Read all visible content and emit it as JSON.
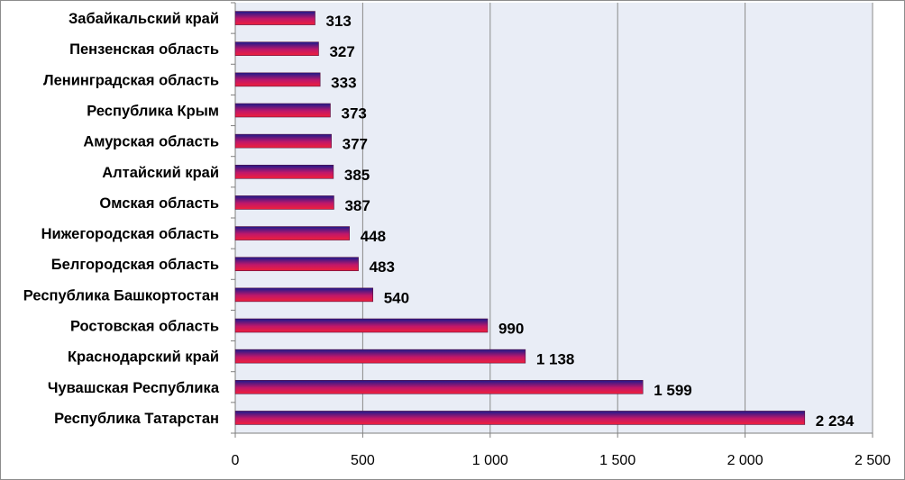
{
  "chart_data": {
    "type": "bar",
    "orientation": "horizontal",
    "categories": [
      "Забайкальский край",
      "Пензенская область",
      "Ленинградская область",
      "Республика Крым",
      "Амурская область",
      "Алтайский край",
      "Омская область",
      "Нижегородская область",
      "Белгородская область",
      "Республика Башкортостан",
      "Ростовская область",
      "Краснодарский край",
      "Чувашская Республика",
      "Республика Татарстан"
    ],
    "values": [
      313,
      327,
      333,
      373,
      377,
      385,
      387,
      448,
      483,
      540,
      990,
      1138,
      1599,
      2234
    ],
    "value_labels": [
      "313",
      "327",
      "333",
      "373",
      "377",
      "385",
      "387",
      "448",
      "483",
      "540",
      "990",
      "1 138",
      "1 599",
      "2 234"
    ],
    "xlim": [
      0,
      2500
    ],
    "xticks": [
      0,
      500,
      1000,
      1500,
      2000,
      2500
    ],
    "xtick_labels": [
      "0",
      "500",
      "1 000",
      "1 500",
      "2 000",
      "2 500"
    ],
    "title": "",
    "xlabel": "",
    "ylabel": "",
    "grid": "vertical",
    "legend": "none",
    "colors": {
      "plot_background": "#e9edf6",
      "gridline": "#8a8a8a",
      "bar_top": "#1b1a8c",
      "bar_mid": "#c0176a",
      "bar_bottom": "#f0203a",
      "bar_edge": "#5a1040"
    }
  }
}
